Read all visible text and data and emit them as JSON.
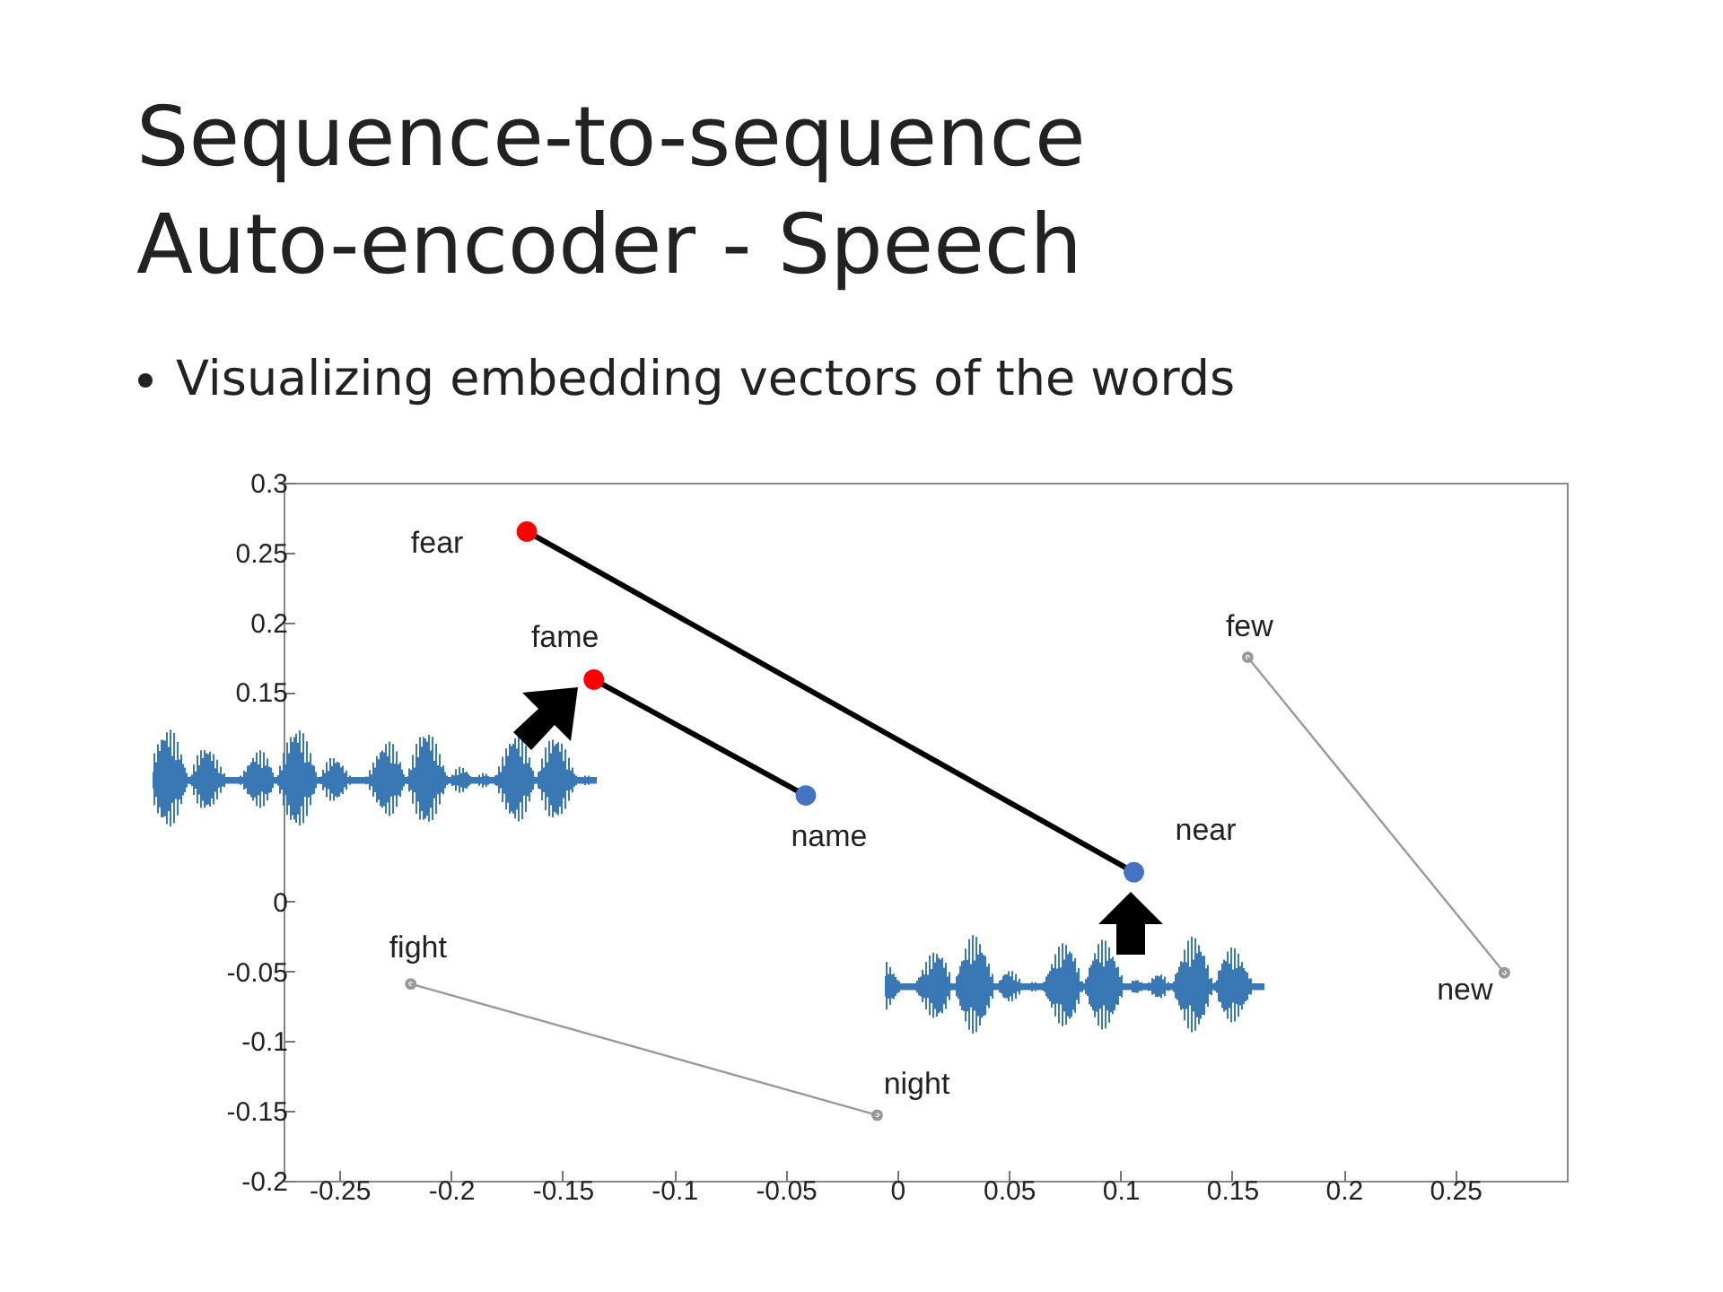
{
  "chart_data": {
    "type": "scatter",
    "title": "Sequence-to-sequence Auto-encoder - Speech",
    "subtitle": "Visualizing embedding vectors of the words",
    "xlim": [
      -0.275,
      0.3
    ],
    "ylim": [
      -0.2,
      0.3
    ],
    "xticks": [
      -0.25,
      -0.2,
      -0.15,
      -0.1,
      -0.05,
      0,
      0.05,
      0.1,
      0.15,
      0.2,
      0.25
    ],
    "yticks": [
      -0.2,
      -0.15,
      -0.1,
      -0.05,
      0,
      0.15,
      0.2,
      0.25,
      0.3
    ],
    "grid": false,
    "marker": "circle",
    "line_style": "solid",
    "series": [
      {
        "type": "line",
        "marker": "none",
        "color": "#000000",
        "x": [
          -0.166,
          0.106
        ],
        "values": [
          0.265,
          0.021
        ]
      },
      {
        "type": "line",
        "marker": "none",
        "color": "#000000",
        "x": [
          -0.136,
          -0.041
        ],
        "values": [
          0.159,
          0.076
        ]
      },
      {
        "type": "line",
        "marker": "none",
        "color": "#999999",
        "x": [
          0.157,
          0.272
        ],
        "values": [
          0.175,
          -0.051
        ]
      },
      {
        "type": "line",
        "marker": "none",
        "color": "#999999",
        "x": [
          -0.218,
          -0.009
        ],
        "values": [
          -0.059,
          -0.153
        ]
      },
      {
        "color": "#ff0000",
        "x": [
          -0.166,
          -0.136
        ],
        "values": [
          0.265,
          0.159
        ]
      },
      {
        "color": "#4472c4",
        "x": [
          -0.041,
          0.106
        ],
        "values": [
          0.076,
          0.021
        ]
      },
      {
        "color": "#999999",
        "x": [
          0.157,
          0.272,
          -0.218,
          -0.009
        ],
        "values": [
          0.175,
          -0.051,
          -0.059,
          -0.153
        ]
      }
    ],
    "annotations": [
      {
        "text": "fear",
        "x": -0.166,
        "y": 0.265
      },
      {
        "text": "fame",
        "x": -0.136,
        "y": 0.159
      },
      {
        "text": "name",
        "x": -0.041,
        "y": 0.076
      },
      {
        "text": "near",
        "x": 0.106,
        "y": 0.021
      },
      {
        "text": "few",
        "x": 0.157,
        "y": 0.175
      },
      {
        "text": "new",
        "x": 0.272,
        "y": -0.051
      },
      {
        "text": "fight",
        "x": -0.218,
        "y": -0.059
      },
      {
        "text": "night",
        "x": -0.009,
        "y": -0.153
      }
    ]
  }
}
